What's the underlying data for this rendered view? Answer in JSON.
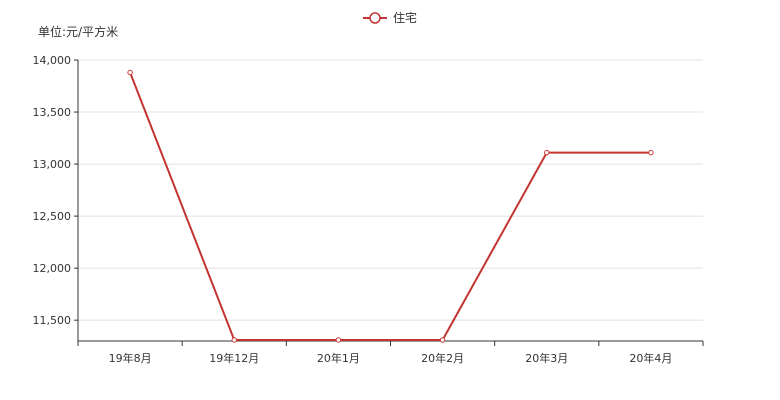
{
  "chart_data": {
    "type": "line",
    "title": "",
    "xlabel": "",
    "ylabel": "单位:元/平方米",
    "categories": [
      "19年8月",
      "19年12月",
      "20年1月",
      "20年2月",
      "20年3月",
      "20年4月"
    ],
    "series": [
      {
        "name": "住宅",
        "values": [
          13880,
          11310,
          11310,
          11310,
          13110,
          13110
        ]
      }
    ],
    "ylim": [
      11300,
      14000
    ],
    "yticks": [
      11500,
      12000,
      12500,
      13000,
      13500,
      14000
    ],
    "ytick_labels": [
      "11,500",
      "12,000",
      "12,500",
      "13,000",
      "13,500",
      "14,000"
    ],
    "grid": true,
    "legend_position": "top-center",
    "colors": {
      "series": "#c23531",
      "grid": "#e0e0e0",
      "axis": "#333333"
    }
  }
}
